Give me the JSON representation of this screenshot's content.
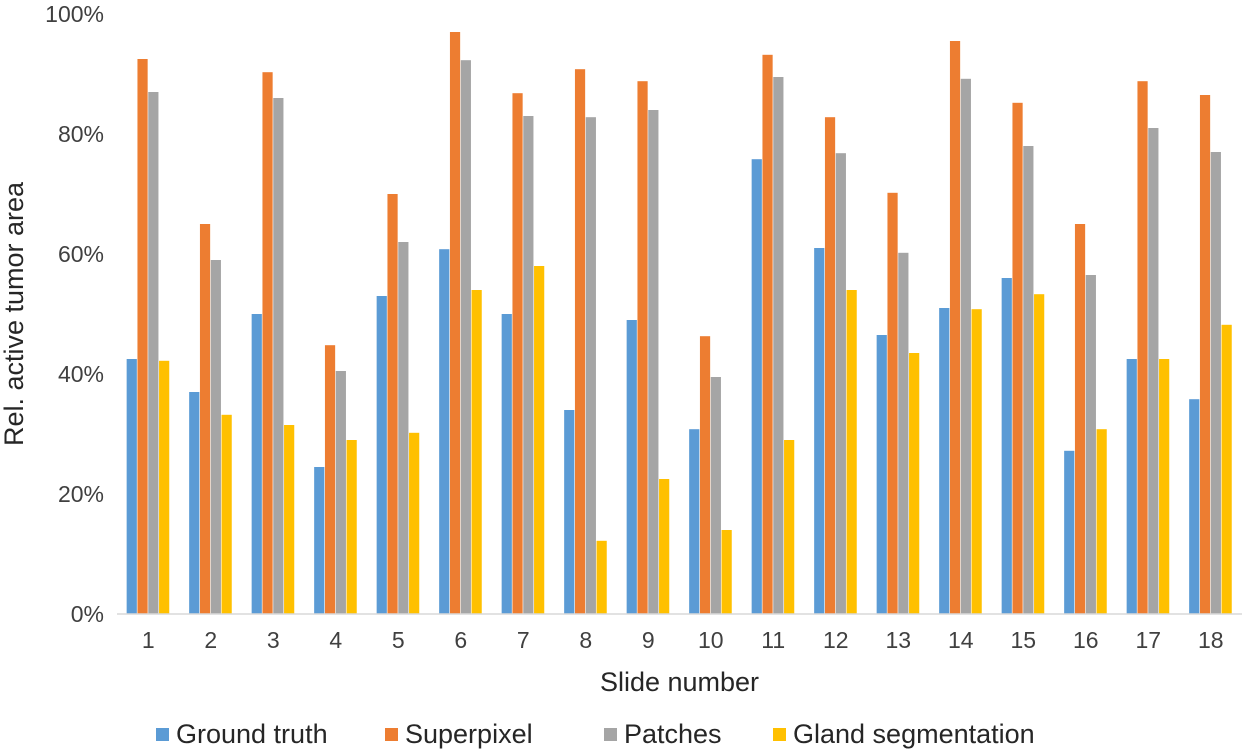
{
  "chart_data": {
    "type": "bar",
    "title": "",
    "xlabel": "Slide number",
    "ylabel": "Rel. active tumor area",
    "ylim": [
      0,
      100
    ],
    "y_ticks": [
      "0%",
      "20%",
      "40%",
      "60%",
      "80%",
      "100%"
    ],
    "grid": false,
    "legend_position": "bottom",
    "categories": [
      "1",
      "2",
      "3",
      "4",
      "5",
      "6",
      "7",
      "8",
      "9",
      "10",
      "11",
      "12",
      "13",
      "14",
      "15",
      "16",
      "17",
      "18"
    ],
    "series": [
      {
        "name": "Ground truth",
        "color": "#5B9BD5",
        "values": [
          42.5,
          37,
          50,
          24.5,
          53,
          60.8,
          50,
          34,
          49,
          30.8,
          75.8,
          61,
          46.5,
          51,
          56,
          27.2,
          42.5,
          35.8
        ]
      },
      {
        "name": "Superpixel",
        "color": "#ED7D31",
        "values": [
          92.5,
          65,
          90.3,
          44.8,
          70,
          97,
          86.8,
          90.8,
          88.8,
          46.3,
          93.2,
          82.8,
          70.2,
          95.5,
          85.2,
          65,
          88.8,
          86.5
        ]
      },
      {
        "name": "Patches",
        "color": "#A5A5A5",
        "values": [
          87,
          59,
          86,
          40.5,
          62,
          92.3,
          83,
          82.8,
          84,
          39.5,
          89.5,
          76.8,
          60.2,
          89.2,
          78,
          56.5,
          81,
          77
        ]
      },
      {
        "name": "Gland segmentation",
        "color": "#FFC000",
        "values": [
          42.2,
          33.2,
          31.5,
          29,
          30.2,
          54,
          58,
          12.2,
          22.5,
          14,
          29,
          54,
          43.5,
          50.8,
          53.3,
          30.8,
          42.5,
          48.2
        ]
      }
    ]
  }
}
